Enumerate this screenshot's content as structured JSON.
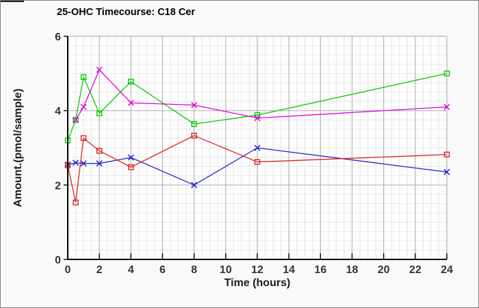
{
  "figure": {
    "background": "#f9f9f9",
    "plot_background": "#fdfdfd",
    "border_color": "#7e7e7e",
    "axis_color": "#000000",
    "tick_label_color": "#333333"
  },
  "chart_data": {
    "type": "line",
    "title": "25-OHC Timecourse: C18 Cer",
    "xlabel": "Time (hours)",
    "ylabel": "Amount.(pmol/sample)",
    "xlim": [
      0,
      24
    ],
    "ylim": [
      0,
      6
    ],
    "x_ticks": [
      0,
      2,
      4,
      6,
      8,
      10,
      12,
      14,
      16,
      18,
      20,
      22,
      24
    ],
    "y_ticks": [
      0,
      2,
      4,
      6
    ],
    "grid": {
      "major_color": "#b4b4b4",
      "minor_color": "#e7e7e7",
      "x_major_step": 2,
      "y_major_step": 2,
      "x_minor_step": 0.5,
      "y_minor_step": 0.25
    },
    "legend": "none",
    "series": [
      {
        "name": "blue-x-series",
        "marker": "x",
        "color": "#2222cc",
        "x": [
          0,
          0.5,
          1,
          2,
          4,
          8,
          12,
          24
        ],
        "y": [
          2.55,
          2.6,
          2.58,
          2.58,
          2.74,
          2.0,
          3.0,
          2.35
        ]
      },
      {
        "name": "green-square-series",
        "marker": "square",
        "color": "#00cc00",
        "x": [
          0,
          0.5,
          1,
          2,
          4,
          8,
          12,
          24
        ],
        "y": [
          3.2,
          3.75,
          4.9,
          3.93,
          4.78,
          3.64,
          3.88,
          5.0
        ]
      },
      {
        "name": "red-square-series",
        "marker": "square",
        "color": "#dd2222",
        "x": [
          0,
          0.5,
          1,
          2,
          4,
          8,
          12,
          24
        ],
        "y": [
          2.53,
          1.53,
          3.26,
          2.92,
          2.48,
          3.33,
          2.62,
          2.82
        ]
      },
      {
        "name": "magenta-x-series",
        "marker": "x",
        "color": "#dd00dd",
        "x": [
          0.5,
          1,
          2,
          4,
          8,
          12,
          24
        ],
        "y": [
          3.75,
          4.1,
          5.1,
          4.21,
          4.15,
          3.8,
          4.1
        ]
      }
    ]
  }
}
